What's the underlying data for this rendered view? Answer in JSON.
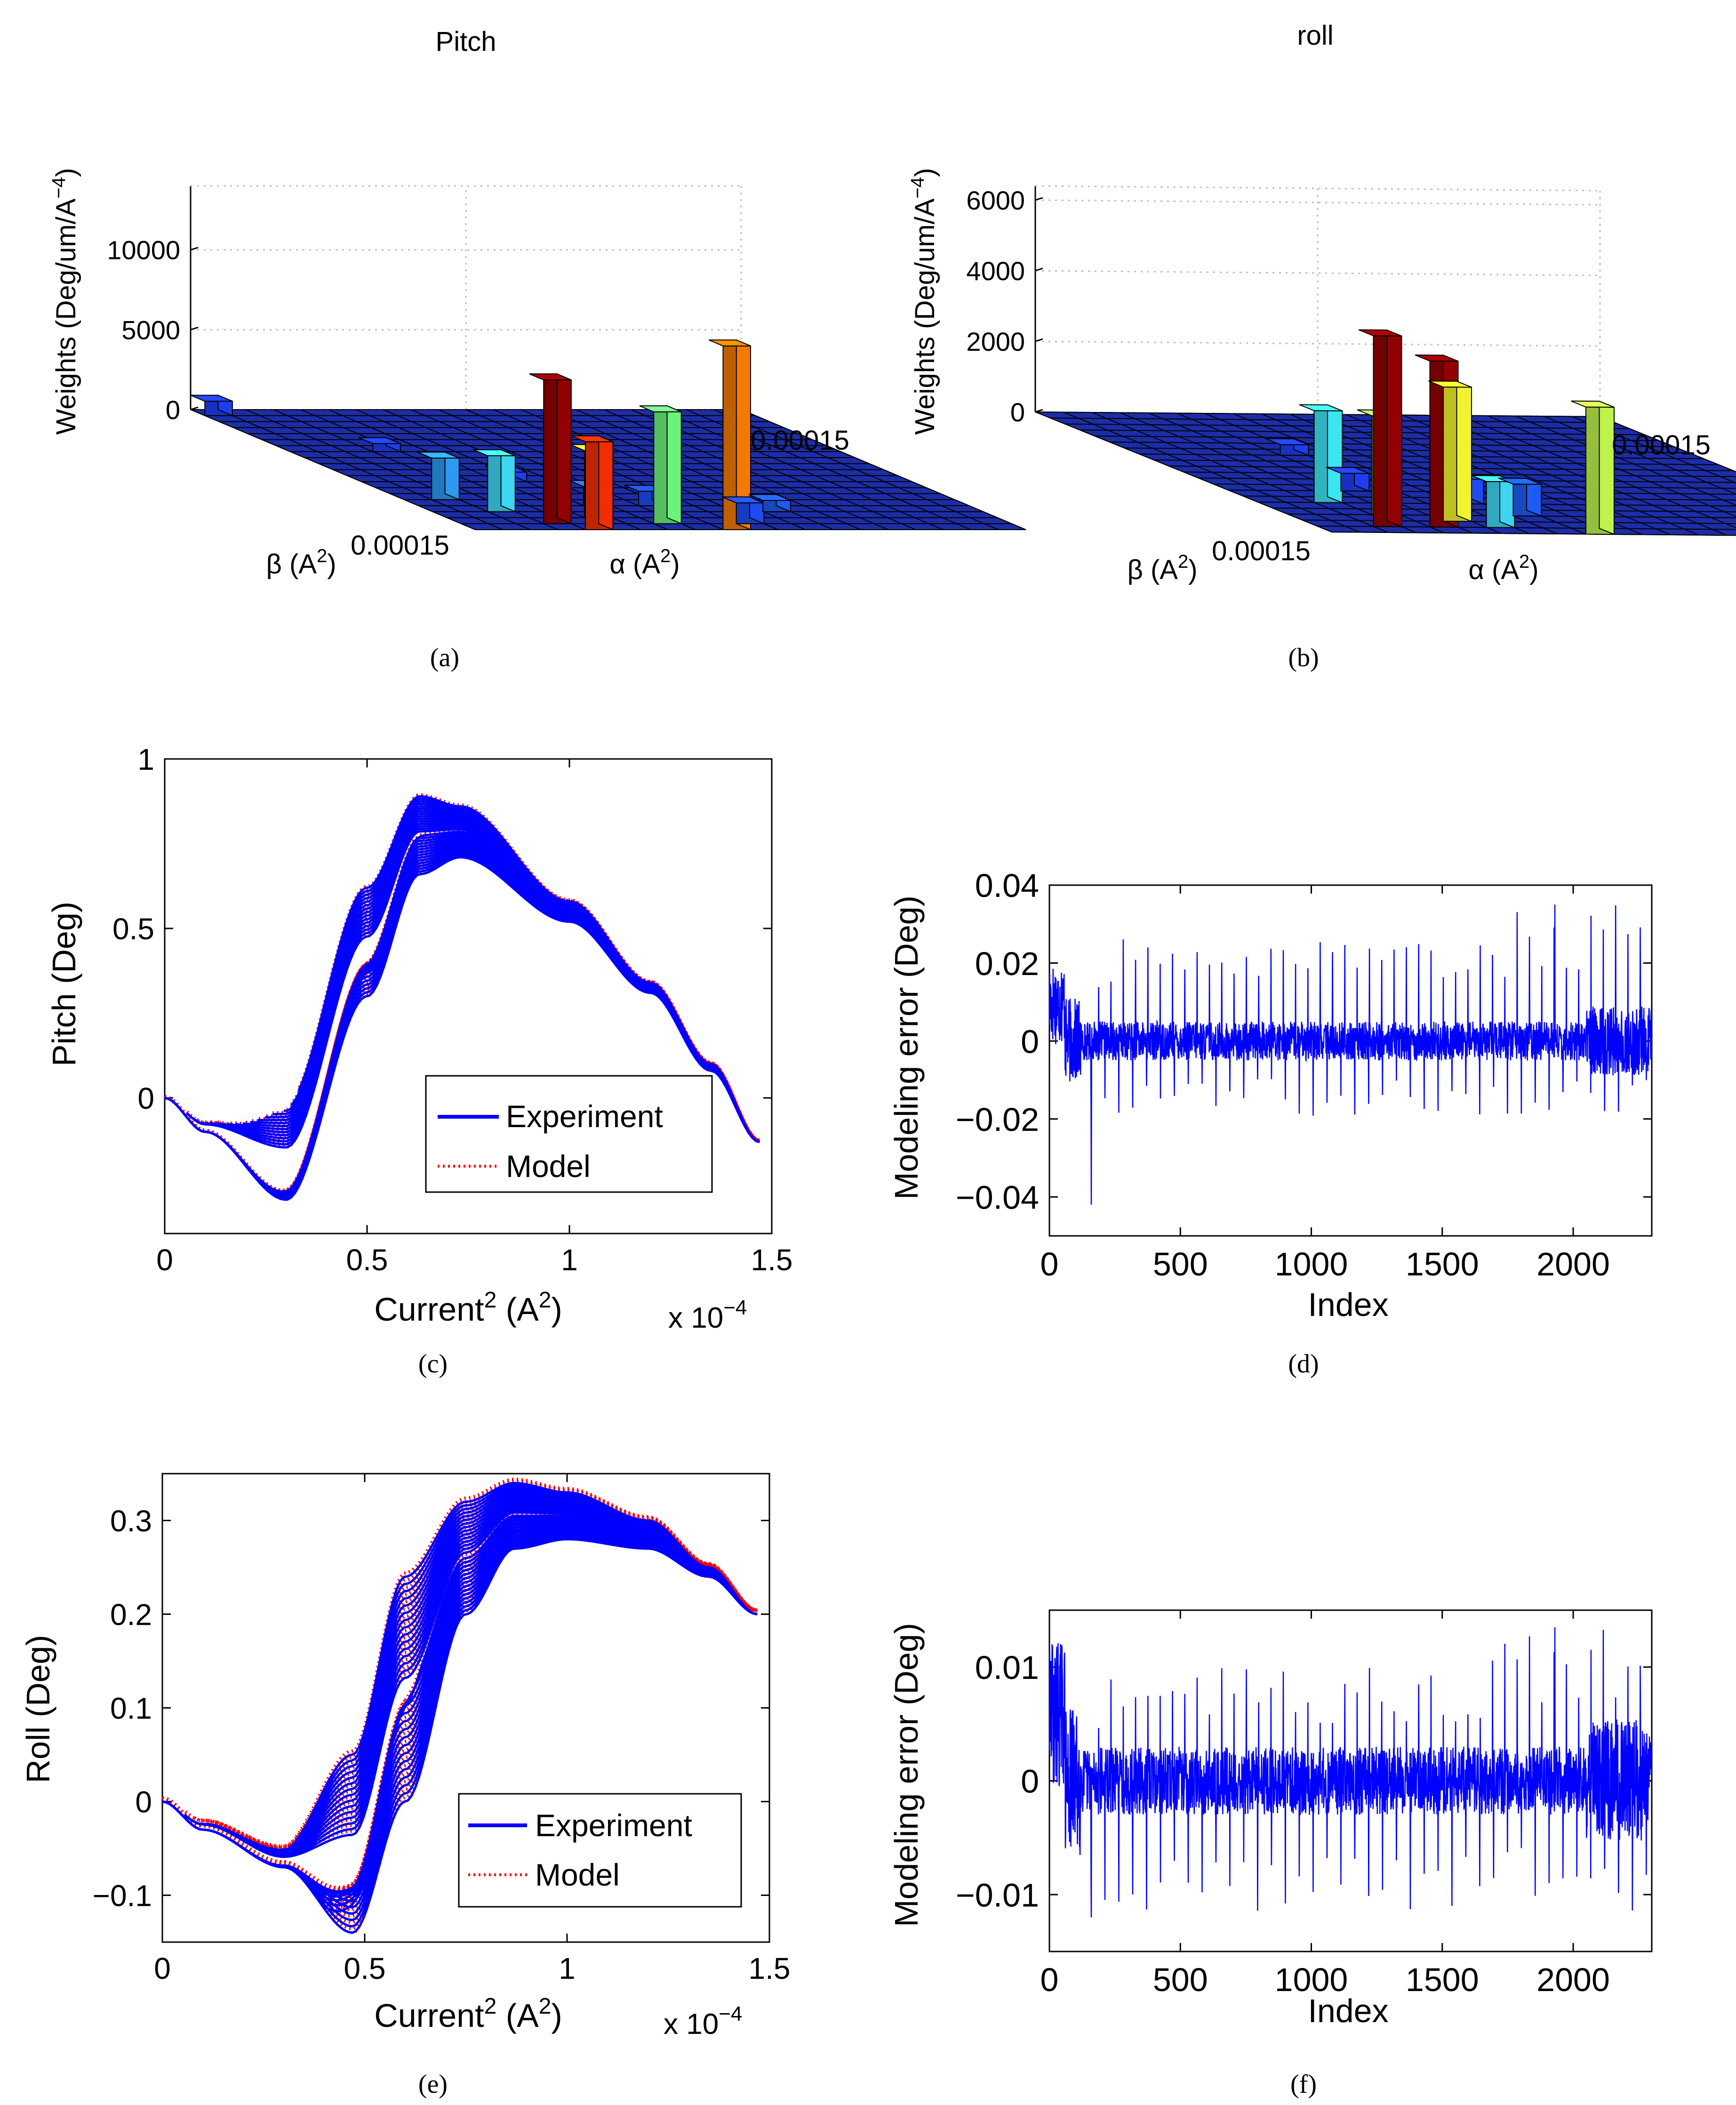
{
  "captions": [
    "(a)",
    "(b)",
    "(c)",
    "(d)",
    "(e)",
    "(f)"
  ],
  "chart_data": [
    {
      "id": "a",
      "type": "bar3d",
      "title": "Pitch",
      "zlabel": "Weights (Deg/um/A",
      "zlabel_exp": "−4",
      "zlabel_close": ")",
      "xlabel": "β (A",
      "xlabel_exp": "2",
      "xlabel_close": ")",
      "ylabel": "α (A",
      "ylabel_exp": "2",
      "ylabel_close": ")",
      "ztick_labels": [
        "0",
        "5000",
        "10000"
      ],
      "zticks": [
        0,
        5000,
        10000
      ],
      "zlim": [
        0,
        14000
      ],
      "x_tick_label": "0.00015",
      "y_tick_label": "0.00015",
      "grid_n": 20,
      "bars": [
        {
          "i": 9,
          "j": 19,
          "value": 11500,
          "color": "#ff8000"
        },
        {
          "i": 4,
          "j": 19,
          "value": 5500,
          "color": "#ff3000"
        },
        {
          "i": 3,
          "j": 18,
          "value": 9000,
          "color": "#9a0000"
        },
        {
          "i": 7,
          "j": 18,
          "value": 7000,
          "color": "#70ff80"
        },
        {
          "i": 2,
          "j": 16,
          "value": 3500,
          "color": "#40e0ff"
        },
        {
          "i": 5,
          "j": 17,
          "value": 4200,
          "color": "#ffff30"
        },
        {
          "i": 1,
          "j": 14,
          "value": 2600,
          "color": "#30a0ff"
        },
        {
          "i": 10,
          "j": 18,
          "value": 1300,
          "color": "#2050ff"
        },
        {
          "i": 6,
          "j": 15,
          "value": 1200,
          "color": "#3070ff"
        },
        {
          "i": 8,
          "j": 15,
          "value": 900,
          "color": "#2050ff"
        },
        {
          "i": 12,
          "j": 16,
          "value": 700,
          "color": "#2060ff"
        },
        {
          "i": 0,
          "j": 0,
          "value": 900,
          "color": "#2040ff"
        },
        {
          "i": 3,
          "j": 6,
          "value": 500,
          "color": "#2040ff"
        },
        {
          "i": 5,
          "j": 11,
          "value": 600,
          "color": "#2040ff"
        }
      ]
    },
    {
      "id": "b",
      "type": "bar3d",
      "title": "roll",
      "zlabel": "Weights (Deg/um/A",
      "zlabel_exp": "−4",
      "zlabel_close": ")",
      "xlabel": "β (A",
      "xlabel_exp": "2",
      "xlabel_close": ")",
      "ylabel": "α (A",
      "ylabel_exp": "2",
      "ylabel_close": ")",
      "ztick_labels": [
        "0",
        "2000",
        "4000",
        "6000"
      ],
      "zticks": [
        0,
        2000,
        4000,
        6000
      ],
      "zlim": [
        0,
        6400
      ],
      "x_tick_label": "0.00015",
      "y_tick_label": "0.00015",
      "grid_n": 20,
      "bars": [
        {
          "i": 9,
          "j": 19,
          "value": 3600,
          "color": "#c8ff50"
        },
        {
          "i": 2,
          "j": 18,
          "value": 5400,
          "color": "#9a0000"
        },
        {
          "i": 4,
          "j": 18,
          "value": 4700,
          "color": "#9a0000"
        },
        {
          "i": 3,
          "j": 16,
          "value": 2800,
          "color": "#b8ff60"
        },
        {
          "i": 5,
          "j": 17,
          "value": 3800,
          "color": "#ffff30"
        },
        {
          "i": 6,
          "j": 18,
          "value": 1300,
          "color": "#40e0ff"
        },
        {
          "i": 2,
          "j": 14,
          "value": 2600,
          "color": "#40f0ff"
        },
        {
          "i": 8,
          "j": 16,
          "value": 900,
          "color": "#2060ff"
        },
        {
          "i": 4,
          "j": 12,
          "value": 500,
          "color": "#2040ff"
        },
        {
          "i": 7,
          "j": 14,
          "value": 700,
          "color": "#2050ff"
        },
        {
          "i": 5,
          "j": 6,
          "value": 300,
          "color": "#2040ff"
        }
      ]
    },
    {
      "id": "c",
      "type": "line",
      "xlabel": "Current",
      "xlabel_exp": "2",
      "xlabel_unit": " (A",
      "xlabel_unit_exp": "2",
      "xlabel_close": ")",
      "ylabel": "Pitch (Deg)",
      "xlim": [
        0,
        1.5
      ],
      "ylim": [
        -0.4,
        1
      ],
      "xticks": [
        0,
        0.5,
        1,
        1.5
      ],
      "xtick_labels": [
        "0",
        "0.5",
        "1",
        "1.5"
      ],
      "yticks": [
        0,
        0.5,
        1
      ],
      "ytick_labels": [
        "0",
        "0.5",
        "1"
      ],
      "x_multiplier": "x 10",
      "x_multiplier_exp": "−4",
      "legend": [
        "Experiment",
        "Model"
      ],
      "legend_position": "bottom-right",
      "series": [
        {
          "name": "Experiment",
          "style": "solid",
          "color": "#0000ff",
          "loops": 14
        },
        {
          "name": "Model",
          "style": "dotted",
          "color": "#ff0000",
          "loops": 14
        }
      ],
      "envelope": {
        "x": [
          0,
          0.1,
          0.3,
          0.5,
          0.63,
          0.73,
          1.0,
          1.2,
          1.35,
          1.47
        ],
        "upper": [
          0,
          -0.06,
          -0.02,
          0.62,
          0.89,
          0.86,
          0.58,
          0.34,
          0.1,
          -0.13
        ],
        "lower": [
          0,
          -0.1,
          -0.3,
          0.3,
          0.66,
          0.71,
          0.52,
          0.31,
          0.08,
          -0.13
        ]
      }
    },
    {
      "id": "d",
      "type": "line",
      "xlabel": "Index",
      "ylabel": "Modeling error (Deg)",
      "xlim": [
        0,
        2300
      ],
      "ylim": [
        -0.05,
        0.04
      ],
      "xticks": [
        0,
        500,
        1000,
        1500,
        2000
      ],
      "xtick_labels": [
        "0",
        "500",
        "1000",
        "1500",
        "2000"
      ],
      "yticks": [
        -0.04,
        -0.02,
        0,
        0.02,
        0.04
      ],
      "ytick_labels": [
        "−0.04",
        "−0.02",
        "0",
        "0.02",
        "0.04"
      ],
      "series": [
        {
          "name": "error",
          "color": "#0000ff",
          "n": 2300,
          "noise": 0.005,
          "spike_max": 0.035,
          "spike_min": -0.042
        }
      ]
    },
    {
      "id": "e",
      "type": "line",
      "xlabel": "Current",
      "xlabel_exp": "2",
      "xlabel_unit": " (A",
      "xlabel_unit_exp": "2",
      "xlabel_close": ")",
      "ylabel": "Roll (Deg)",
      "xlim": [
        0,
        1.5
      ],
      "ylim": [
        -0.15,
        0.35
      ],
      "xticks": [
        0,
        0.5,
        1,
        1.5
      ],
      "xtick_labels": [
        "0",
        "0.5",
        "1",
        "1.5"
      ],
      "yticks": [
        -0.1,
        0,
        0.1,
        0.2,
        0.3
      ],
      "ytick_labels": [
        "−0.1",
        "0",
        "0.1",
        "0.2",
        "0.3"
      ],
      "x_multiplier": "x 10",
      "x_multiplier_exp": "−4",
      "legend": [
        "Experiment",
        "Model"
      ],
      "legend_position": "bottom-right",
      "series": [
        {
          "name": "Experiment",
          "style": "solid",
          "color": "#0000ff",
          "loops": 14
        },
        {
          "name": "Model",
          "style": "dotted",
          "color": "#ff0000",
          "loops": 14
        }
      ],
      "envelope": {
        "x": [
          0,
          0.1,
          0.3,
          0.47,
          0.6,
          0.75,
          0.87,
          1.0,
          1.2,
          1.35,
          1.47
        ],
        "upper": [
          0,
          -0.02,
          -0.05,
          0.05,
          0.24,
          0.32,
          0.34,
          0.33,
          0.3,
          0.25,
          0.2
        ],
        "lower": [
          0,
          -0.03,
          -0.07,
          -0.14,
          0.0,
          0.2,
          0.27,
          0.28,
          0.27,
          0.24,
          0.2
        ]
      }
    },
    {
      "id": "f",
      "type": "line",
      "xlabel": "Index",
      "ylabel": "Modeling error (Deg)",
      "xlim": [
        0,
        2300
      ],
      "ylim": [
        -0.015,
        0.015
      ],
      "xticks": [
        0,
        500,
        1000,
        1500,
        2000
      ],
      "xtick_labels": [
        "0",
        "500",
        "1000",
        "1500",
        "2000"
      ],
      "yticks": [
        -0.01,
        0,
        0.01
      ],
      "ytick_labels": [
        "−0.01",
        "0",
        "0.01"
      ],
      "series": [
        {
          "name": "error",
          "color": "#0000ff",
          "n": 2300,
          "noise": 0.003,
          "spike_max": 0.0135,
          "spike_min": -0.012
        }
      ]
    }
  ]
}
